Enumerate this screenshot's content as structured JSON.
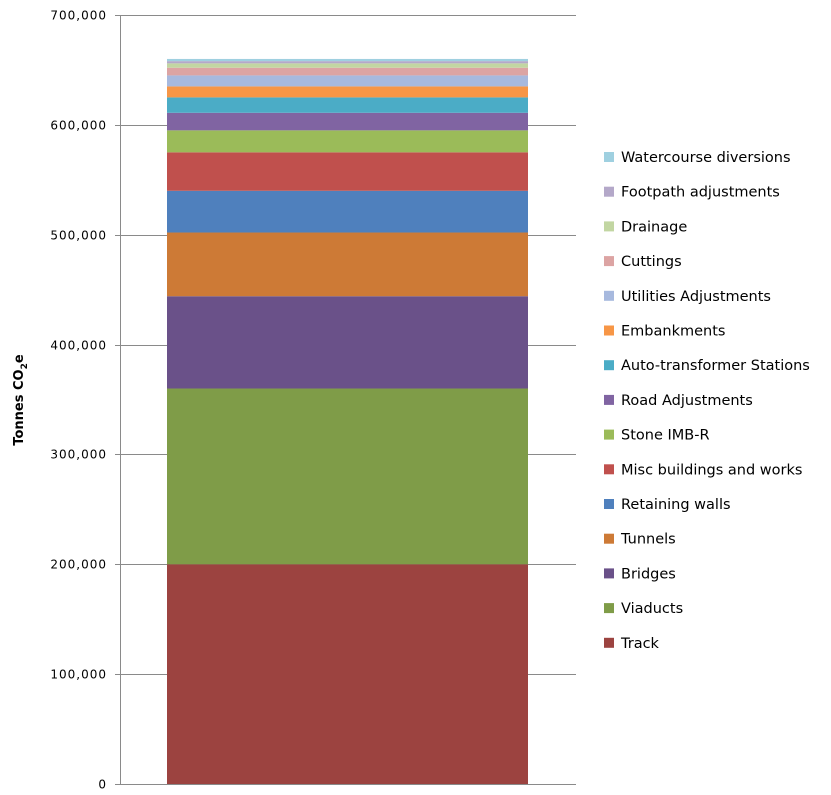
{
  "chart_data": {
    "type": "bar",
    "stacked": true,
    "title": "",
    "xlabel": "",
    "ylabel": "Tonnes CO",
    "ylabel_subscript": "2",
    "ylabel_suffix": "e",
    "ylim": [
      0,
      700000
    ],
    "yticks": [
      0,
      100000,
      200000,
      300000,
      400000,
      500000,
      600000,
      700000
    ],
    "ytick_labels": [
      "0",
      "100,000",
      "200,000",
      "300,000",
      "400,000",
      "500,000",
      "600,000",
      "700,000"
    ],
    "grid": true,
    "legend_position": "right",
    "categories": [
      ""
    ],
    "series": [
      {
        "name": "Track",
        "color": "#9c4340",
        "values": [
          200000
        ]
      },
      {
        "name": "Viaducts",
        "color": "#7f9c48",
        "values": [
          160000
        ]
      },
      {
        "name": "Bridges",
        "color": "#6a5189",
        "values": [
          84000
        ]
      },
      {
        "name": "Tunnels",
        "color": "#cd7a36",
        "values": [
          58000
        ]
      },
      {
        "name": "Retaining walls",
        "color": "#4f80bd",
        "values": [
          38000
        ]
      },
      {
        "name": "Misc buildings and works",
        "color": "#c0504d",
        "values": [
          35000
        ]
      },
      {
        "name": "Stone IMB-R",
        "color": "#9bbb59",
        "values": [
          20000
        ]
      },
      {
        "name": "Road Adjustments",
        "color": "#8064a2",
        "values": [
          16000
        ]
      },
      {
        "name": "Auto-transformer Stations",
        "color": "#4bacc6",
        "values": [
          14000
        ]
      },
      {
        "name": "Embankments",
        "color": "#f79646",
        "values": [
          10000
        ]
      },
      {
        "name": "Utilities Adjustments",
        "color": "#a7b9de",
        "values": [
          10000
        ]
      },
      {
        "name": "Cuttings",
        "color": "#dca4a3",
        "values": [
          7000
        ]
      },
      {
        "name": "Drainage",
        "color": "#c2d6a2",
        "values": [
          4000
        ]
      },
      {
        "name": "Footpath adjustments",
        "color": "#b4a8c9",
        "values": [
          2000
        ]
      },
      {
        "name": "Watercourse diversions",
        "color": "#9fd0e0",
        "values": [
          2000
        ]
      }
    ]
  },
  "colors": {
    "gridline": "#8a8a8a",
    "axis": "#8a8a8a",
    "text": "#000000"
  }
}
